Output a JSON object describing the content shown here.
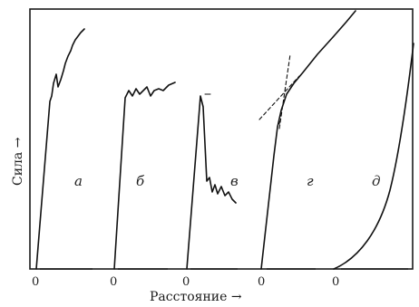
{
  "chart_data": {
    "type": "line",
    "xlabel": "Расстояние →",
    "ylabel": "Сила →",
    "series": [
      {
        "label": "а",
        "origin": "0"
      },
      {
        "label": "б",
        "origin": "0"
      },
      {
        "label": "в",
        "origin": "0"
      },
      {
        "label": "г",
        "origin": "0"
      },
      {
        "label": "д",
        "origin": "0"
      }
    ],
    "grid": false,
    "frame": true,
    "units": "none"
  }
}
